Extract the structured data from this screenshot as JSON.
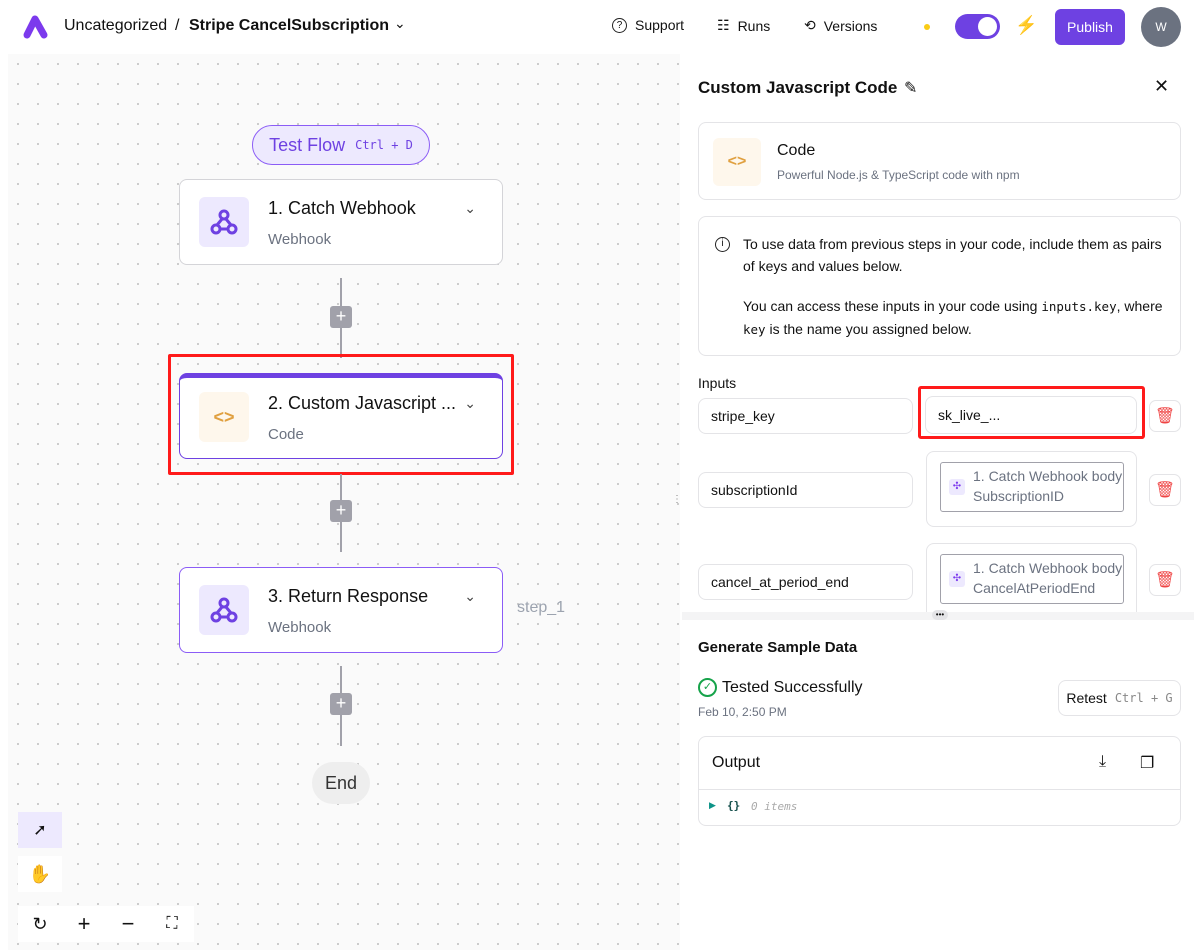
{
  "header": {
    "folder": "Uncategorized",
    "separator": "/",
    "flow_name": "Stripe CancelSubscription",
    "support": "Support",
    "runs": "Runs",
    "versions": "Versions",
    "publish": "Publish",
    "avatar": "W",
    "toggle_on": true
  },
  "canvas": {
    "test_flow": {
      "label": "Test Flow",
      "shortcut": "Ctrl + D"
    },
    "nodes": [
      {
        "title": "1. Catch Webhook",
        "subtitle": "Webhook",
        "icon": "webhook-icon"
      },
      {
        "title": "2. Custom Javascript ...",
        "subtitle": "Code",
        "icon": "code-icon"
      },
      {
        "title": "3. Return Response",
        "subtitle": "Webhook",
        "icon": "webhook-icon"
      }
    ],
    "step_label": "step_1",
    "end": "End"
  },
  "panel": {
    "title": "Custom Javascript Code",
    "piece": {
      "name": "Code",
      "description": "Powerful Node.js & TypeScript code with npm"
    },
    "info": {
      "p1": "To use data from previous steps in your code, include them as pairs of keys and values below.",
      "p2a": "You can access these inputs in your code using ",
      "p2code1": "inputs.key",
      "p2b": ", where ",
      "p2code2": "key",
      "p2c": " is the name you assigned below."
    },
    "inputs_label": "Inputs",
    "inputs": [
      {
        "key": "stripe_key",
        "value": "sk_live_..."
      },
      {
        "key": "subscriptionId",
        "value": "1. Catch Webhook body SubscriptionID"
      },
      {
        "key": "cancel_at_period_end",
        "value": "1. Catch Webhook body CancelAtPeriodEnd"
      }
    ],
    "sample": {
      "title": "Generate Sample Data",
      "status": "Tested Successfully",
      "time": "Feb 10, 2:50 PM",
      "retest": "Retest",
      "retest_shortcut": "Ctrl + G",
      "output_label": "Output",
      "output_braces": "{}",
      "output_items": "0 items"
    }
  },
  "colors": {
    "accent": "#6e41e2",
    "highlight": "#ff0000",
    "success": "#16a34a",
    "danger": "#ef4444",
    "code_icon_bg": "#fef7ec",
    "webhook_icon_bg": "#ede9fe"
  }
}
